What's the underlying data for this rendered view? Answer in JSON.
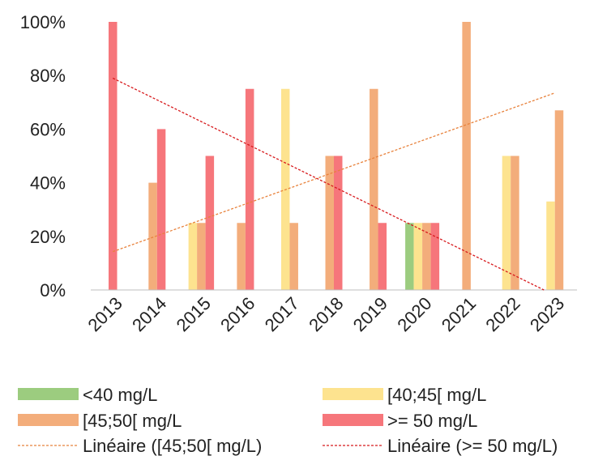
{
  "chart_data": {
    "type": "bar",
    "categories": [
      "2013",
      "2014",
      "2015",
      "2016",
      "2017",
      "2018",
      "2019",
      "2020",
      "2021",
      "2022",
      "2023"
    ],
    "ylim": [
      0,
      100
    ],
    "y_ticks": [
      "0%",
      "20%",
      "40%",
      "60%",
      "80%",
      "100%"
    ],
    "grid": false,
    "legend_position": "bottom",
    "series": [
      {
        "name": "<40 mg/L",
        "color": "#9ccc7f",
        "values": [
          0,
          0,
          0,
          0,
          0,
          0,
          0,
          25,
          0,
          0,
          0
        ]
      },
      {
        "name": "[40;45[ mg/L",
        "color": "#fde38f",
        "values": [
          0,
          0,
          25,
          0,
          75,
          0,
          0,
          25,
          0,
          50,
          33
        ]
      },
      {
        "name": "[45;50[ mg/L",
        "color": "#f3ad7b",
        "values": [
          0,
          40,
          25,
          25,
          25,
          50,
          75,
          25,
          100,
          50,
          67
        ]
      },
      {
        "name": ">= 50 mg/L",
        "color": "#f6767b",
        "values": [
          100,
          60,
          50,
          75,
          0,
          50,
          25,
          25,
          0,
          0,
          0
        ]
      }
    ],
    "trendlines": [
      {
        "name": "Linéaire ([45;50[ mg/L)",
        "color": "#e8823c",
        "values": [
          14.3,
          73.5
        ]
      },
      {
        "name": "Linéaire (>= 50 mg/L)",
        "color": "#d7191c",
        "values": [
          79.0,
          -2.0
        ]
      }
    ]
  }
}
